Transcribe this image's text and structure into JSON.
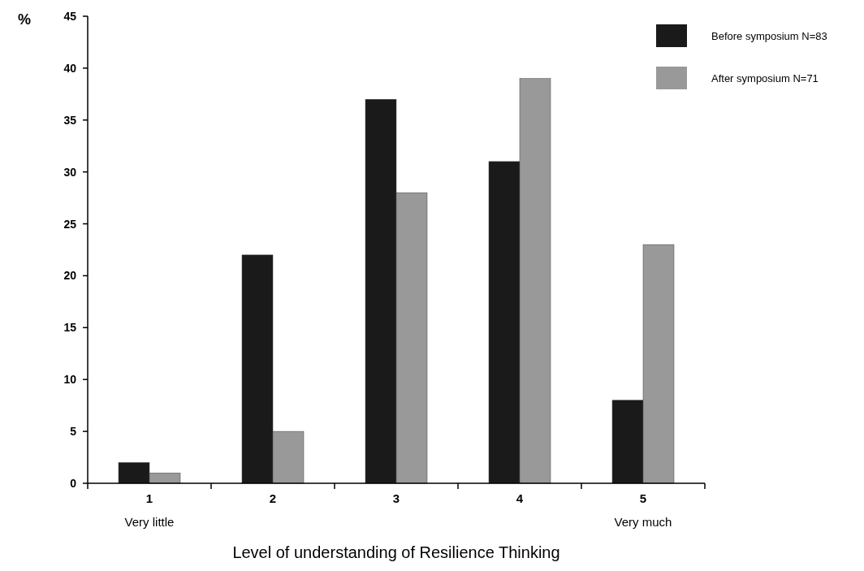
{
  "chart_data": {
    "type": "bar",
    "xlabel": "Level of understanding of Resilience Thinking",
    "ylabel": "%",
    "categories": [
      "1",
      "2",
      "3",
      "4",
      "5"
    ],
    "series": [
      {
        "name": "Before symposium  N=83",
        "color": "#1a1a1a",
        "values": [
          2,
          22,
          37,
          31,
          8
        ]
      },
      {
        "name": "After symposium    N=71",
        "color": "#999999",
        "values": [
          1,
          5,
          28,
          39,
          23
        ]
      }
    ],
    "ylim": [
      0,
      45
    ],
    "yticks": [
      0,
      5,
      10,
      15,
      20,
      25,
      30,
      35,
      40,
      45
    ],
    "grid": false,
    "legend": "top right",
    "annotations": [
      "Very little",
      "Very much"
    ]
  }
}
